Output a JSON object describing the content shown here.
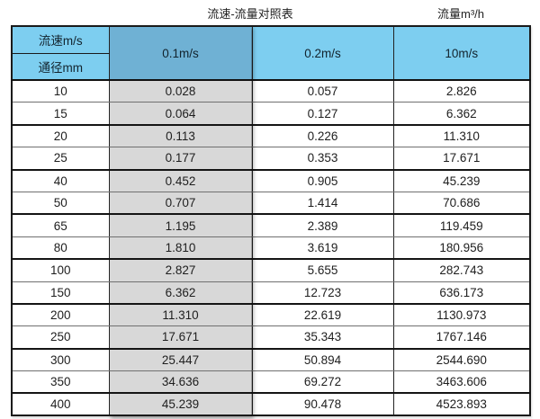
{
  "header": {
    "title": "流速-流量对照表",
    "unit_label": "流量m³/h"
  },
  "chart_data": {
    "type": "table",
    "title": "流速-流量对照表",
    "unit_label": "流量m³/h",
    "corner_top": "流速m/s",
    "corner_bottom": "通径mm",
    "columns": [
      "0.1m/s",
      "0.2m/s",
      "10m/s"
    ],
    "highlighted_column": "0.1m/s",
    "rows": [
      {
        "diameter": "10",
        "values": [
          "0.028",
          "0.057",
          "2.826"
        ]
      },
      {
        "diameter": "15",
        "values": [
          "0.064",
          "0.127",
          "6.362"
        ]
      },
      {
        "diameter": "20",
        "values": [
          "0.113",
          "0.226",
          "11.310"
        ]
      },
      {
        "diameter": "25",
        "values": [
          "0.177",
          "0.353",
          "17.671"
        ]
      },
      {
        "diameter": "40",
        "values": [
          "0.452",
          "0.905",
          "45.239"
        ]
      },
      {
        "diameter": "50",
        "values": [
          "0.707",
          "1.414",
          "70.686"
        ]
      },
      {
        "diameter": "65",
        "values": [
          "1.195",
          "2.389",
          "119.459"
        ]
      },
      {
        "diameter": "80",
        "values": [
          "1.810",
          "3.619",
          "180.956"
        ]
      },
      {
        "diameter": "100",
        "values": [
          "2.827",
          "5.655",
          "282.743"
        ]
      },
      {
        "diameter": "150",
        "values": [
          "6.362",
          "12.723",
          "636.173"
        ]
      },
      {
        "diameter": "200",
        "values": [
          "11.310",
          "22.619",
          "1130.973"
        ]
      },
      {
        "diameter": "250",
        "values": [
          "17.671",
          "35.343",
          "1767.146"
        ]
      },
      {
        "diameter": "300",
        "values": [
          "25.447",
          "50.894",
          "2544.690"
        ]
      },
      {
        "diameter": "350",
        "values": [
          "34.636",
          "69.272",
          "3463.606"
        ]
      },
      {
        "diameter": "400",
        "values": [
          "45.239",
          "90.478",
          "4523.893"
        ]
      }
    ]
  },
  "colors": {
    "header_blue": "#7DCEF0",
    "selected_header_blue": "#6FB1D4",
    "selected_column_grey": "#D8D8D8",
    "border_dark": "#1A1A1A",
    "text": "#1E1E1E"
  }
}
